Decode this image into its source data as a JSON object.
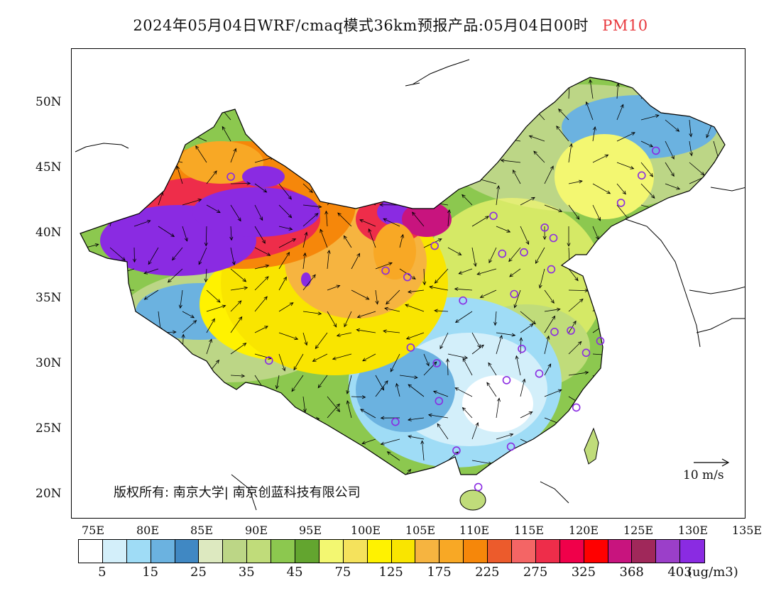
{
  "title": {
    "main": "2024年05月04日WRF/cmaq模式36km预报产品:05月04日00时",
    "species": "PM10"
  },
  "map": {
    "lat_ticks": [
      "50N",
      "45N",
      "40N",
      "35N",
      "30N",
      "25N",
      "20N"
    ],
    "lon_ticks": [
      "75E",
      "80E",
      "85E",
      "90E",
      "95E",
      "100E",
      "105E",
      "110E",
      "115E",
      "120E",
      "125E",
      "130E",
      "135E"
    ],
    "copyright": "版权所有: 南京大学| 南京创蓝科技有限公司",
    "wind_reference": "10 m/s"
  },
  "colorbar": {
    "colors": [
      "#ffffff",
      "#d3effa",
      "#9fdcf6",
      "#6bb2e0",
      "#4088c3",
      "#dde9c0",
      "#bcd686",
      "#c0dc7a",
      "#8cc84f",
      "#63a52f",
      "#f3f771",
      "#f5e25c",
      "#fff200",
      "#f9e500",
      "#f6b440",
      "#f8a825",
      "#f6870a",
      "#ec5b2c",
      "#f46565",
      "#ee2d4a",
      "#f0004a",
      "#ff0000",
      "#c8147e",
      "#a0285a",
      "#9b3fc9",
      "#8a2be2"
    ],
    "labels": [
      "5",
      "15",
      "25",
      "35",
      "45",
      "75",
      "125",
      "175",
      "225",
      "275",
      "325",
      "368",
      "403"
    ],
    "unit": "(ug/m3)"
  },
  "cities": [
    {
      "lon": 87.6,
      "lat": 43.8
    },
    {
      "lon": 91.1,
      "lat": 29.7
    },
    {
      "lon": 101.8,
      "lat": 36.6
    },
    {
      "lon": 103.8,
      "lat": 36.1
    },
    {
      "lon": 106.3,
      "lat": 38.5
    },
    {
      "lon": 108.9,
      "lat": 34.3
    },
    {
      "lon": 111.7,
      "lat": 40.8
    },
    {
      "lon": 112.5,
      "lat": 37.9
    },
    {
      "lon": 114.5,
      "lat": 38.0
    },
    {
      "lon": 116.4,
      "lat": 39.9
    },
    {
      "lon": 117.2,
      "lat": 39.1
    },
    {
      "lon": 117.0,
      "lat": 36.7
    },
    {
      "lon": 113.6,
      "lat": 34.8
    },
    {
      "lon": 123.4,
      "lat": 41.8
    },
    {
      "lon": 125.3,
      "lat": 43.9
    },
    {
      "lon": 126.6,
      "lat": 45.8
    },
    {
      "lon": 104.1,
      "lat": 30.7
    },
    {
      "lon": 106.5,
      "lat": 29.5
    },
    {
      "lon": 106.7,
      "lat": 26.6
    },
    {
      "lon": 102.7,
      "lat": 25.0
    },
    {
      "lon": 108.3,
      "lat": 22.8
    },
    {
      "lon": 113.3,
      "lat": 23.1
    },
    {
      "lon": 110.3,
      "lat": 20.0
    },
    {
      "lon": 112.9,
      "lat": 28.2
    },
    {
      "lon": 114.3,
      "lat": 30.6
    },
    {
      "lon": 115.9,
      "lat": 28.7
    },
    {
      "lon": 117.3,
      "lat": 31.9
    },
    {
      "lon": 118.8,
      "lat": 32.0
    },
    {
      "lon": 121.5,
      "lat": 31.2
    },
    {
      "lon": 120.2,
      "lat": 30.3
    },
    {
      "lon": 119.3,
      "lat": 26.1
    }
  ]
}
